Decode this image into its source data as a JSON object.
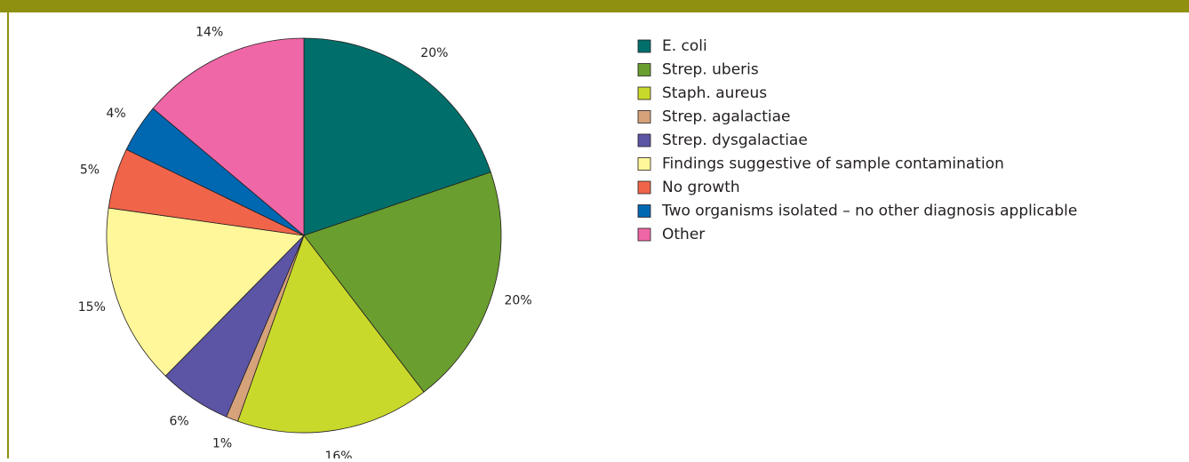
{
  "chart_data": {
    "type": "pie",
    "categories": [
      "E. coli",
      "Strep. uberis",
      "Staph. aureus",
      "Strep. agalactiae",
      "Strep. dysgalactiae",
      "Findings suggestive of sample contamination",
      "No growth",
      "Two organisms isolated – no other diagnosis applicable",
      "Other"
    ],
    "values": [
      20,
      20,
      16,
      1,
      6,
      15,
      5,
      4,
      14
    ],
    "value_labels": [
      "20%",
      "20%",
      "16%",
      "1%",
      "6%",
      "15%",
      "5%",
      "4%",
      "14%"
    ],
    "colors": [
      "#006f6b",
      "#6a9e2f",
      "#c9d92b",
      "#d6a27a",
      "#5c55a5",
      "#fff799",
      "#f0654a",
      "#0067b1",
      "#ef67a6"
    ],
    "legend": "right"
  }
}
